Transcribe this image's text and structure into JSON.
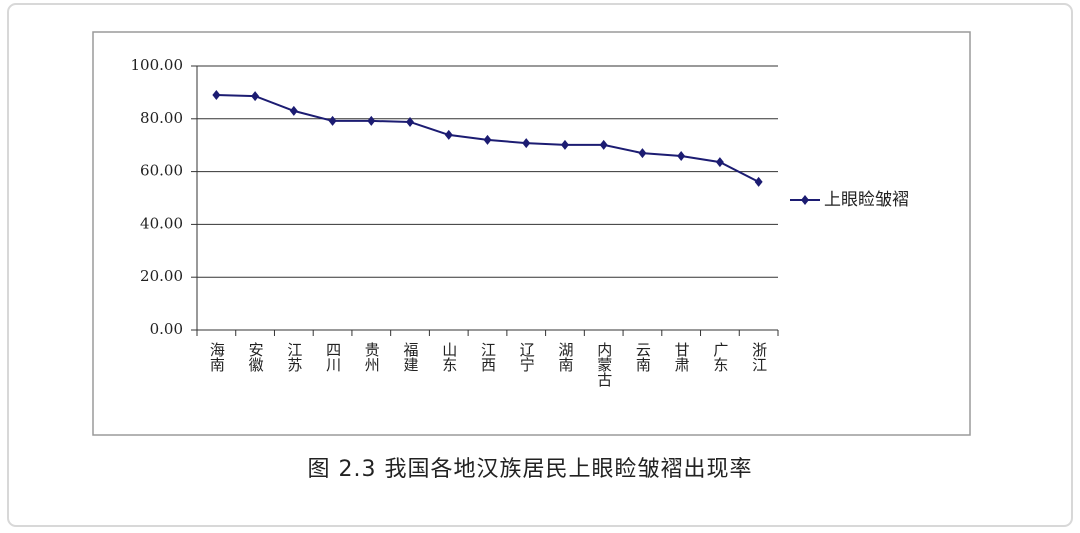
{
  "chart_data": {
    "type": "line",
    "title": "图 2.3 我国各地汉族居民上眼睑皱褶出现率",
    "categories": [
      "海南",
      "安徽",
      "江苏",
      "四川",
      "贵州",
      "福建",
      "山东",
      "江西",
      "辽宁",
      "湖南",
      "内蒙古",
      "云南",
      "甘肃",
      "广东",
      "浙江"
    ],
    "series": [
      {
        "name": "上眼睑皱褶",
        "color": "#1c1c72",
        "values": [
          89.0,
          88.6,
          83.0,
          79.2,
          79.2,
          78.8,
          73.9,
          72.0,
          70.8,
          70.1,
          70.1,
          67.0,
          65.9,
          63.6,
          56.1
        ]
      }
    ],
    "ylim": [
      0,
      100
    ],
    "yticks": [
      {
        "value": 0,
        "label": "0.00"
      },
      {
        "value": 20,
        "label": "20.00"
      },
      {
        "value": 40,
        "label": "40.00"
      },
      {
        "value": 60,
        "label": "60.00"
      },
      {
        "value": 80,
        "label": "80.00"
      },
      {
        "value": 100,
        "label": "100.00"
      }
    ],
    "grid": true,
    "legend": "right"
  }
}
